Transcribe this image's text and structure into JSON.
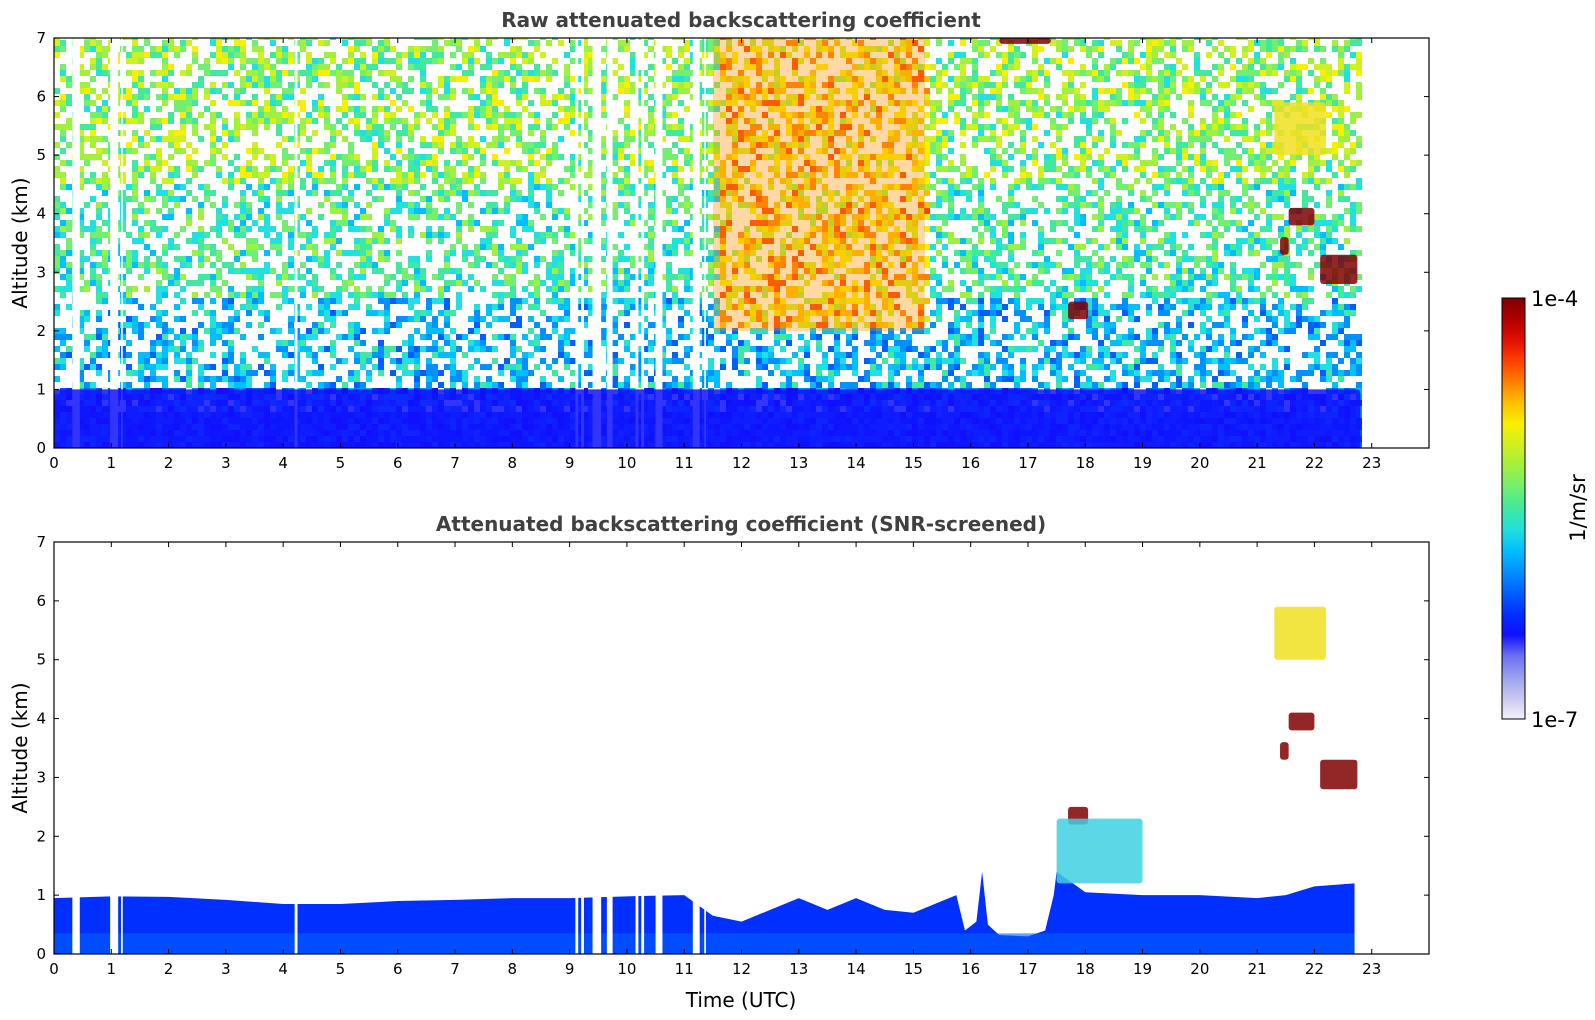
{
  "chart_data": [
    {
      "type": "heatmap",
      "title": "Raw attenuated backscattering coefficient",
      "xlabel": "",
      "ylabel": "Altitude (km)",
      "xlim": [
        0,
        24
      ],
      "ylim": [
        0,
        7
      ],
      "x_ticks": [
        "0",
        "1",
        "2",
        "3",
        "4",
        "5",
        "6",
        "7",
        "8",
        "9",
        "10",
        "11",
        "12",
        "13",
        "14",
        "15",
        "16",
        "17",
        "18",
        "19",
        "20",
        "21",
        "22",
        "23"
      ],
      "y_ticks": [
        "0",
        "1",
        "2",
        "3",
        "4",
        "5",
        "6",
        "7"
      ],
      "data_end_hour": 22.8,
      "data_gaps_hours": [
        [
          0.32,
          0.45
        ],
        [
          0.98,
          1.12
        ],
        [
          1.17,
          1.2
        ],
        [
          4.2,
          4.25
        ],
        [
          9.1,
          9.15
        ],
        [
          9.2,
          9.25
        ],
        [
          9.4,
          9.55
        ],
        [
          9.65,
          9.75
        ],
        [
          10.15,
          10.2
        ],
        [
          10.25,
          10.3
        ],
        [
          10.5,
          10.62
        ],
        [
          11.15,
          11.27
        ],
        [
          11.35,
          11.38
        ]
      ],
      "features": [
        {
          "label": "boundary layer",
          "x_range": [
            0,
            22.8
          ],
          "altitude_km": [
            0,
            1.0
          ],
          "level": "high (blue)"
        },
        {
          "label": "elevated aerosol",
          "x_range": [
            11.5,
            15.2
          ],
          "altitude_km": [
            2,
            7
          ],
          "level": "yellow-red"
        },
        {
          "label": "cloud",
          "x_range": [
            16.5,
            17.4
          ],
          "altitude_km": [
            6.9,
            7.0
          ],
          "level": "1e-4"
        },
        {
          "label": "cloud",
          "x_range": [
            17.7,
            18.05
          ],
          "altitude_km": [
            2.2,
            2.5
          ],
          "level": "1e-4"
        },
        {
          "label": "cloud",
          "x_range": [
            21.4,
            21.55
          ],
          "altitude_km": [
            3.3,
            3.6
          ],
          "level": "1e-4"
        },
        {
          "label": "cloud",
          "x_range": [
            21.55,
            22.0
          ],
          "altitude_km": [
            3.8,
            4.1
          ],
          "level": "1e-4"
        },
        {
          "label": "cloud",
          "x_range": [
            22.1,
            22.75
          ],
          "altitude_km": [
            2.8,
            3.3
          ],
          "level": "1e-4"
        },
        {
          "label": "cirrus",
          "x_range": [
            21.3,
            22.2
          ],
          "altitude_km": [
            5.0,
            5.9
          ],
          "level": "yellow"
        }
      ]
    },
    {
      "type": "heatmap",
      "title": "Attenuated backscattering coefficient (SNR-screened)",
      "xlabel": "Time (UTC)",
      "ylabel": "Altitude (km)",
      "xlim": [
        0,
        24
      ],
      "ylim": [
        0,
        7
      ],
      "x_ticks": [
        "0",
        "1",
        "2",
        "3",
        "4",
        "5",
        "6",
        "7",
        "8",
        "9",
        "10",
        "11",
        "12",
        "13",
        "14",
        "15",
        "16",
        "17",
        "18",
        "19",
        "20",
        "21",
        "22",
        "23"
      ],
      "y_ticks": [
        "0",
        "1",
        "2",
        "3",
        "4",
        "5",
        "6",
        "7"
      ],
      "boundary_layer_top_km": {
        "hours": [
          0,
          1,
          2,
          3,
          4,
          5,
          6,
          7,
          8,
          9,
          10,
          11,
          11.5,
          12,
          12.5,
          13,
          13.5,
          14,
          14.5,
          15,
          15.5,
          15.75,
          15.9,
          16.1,
          16.2,
          16.3,
          16.5,
          17,
          17.3,
          17.45,
          17.5,
          18,
          19,
          20,
          21,
          21.5,
          22,
          22.7
        ],
        "top_km": [
          0.95,
          0.98,
          0.97,
          0.92,
          0.85,
          0.85,
          0.9,
          0.92,
          0.95,
          0.95,
          0.98,
          1.0,
          0.65,
          0.55,
          0.75,
          0.95,
          0.75,
          0.95,
          0.75,
          0.7,
          0.9,
          1.0,
          0.4,
          0.55,
          1.4,
          0.5,
          0.32,
          0.3,
          0.4,
          1.0,
          1.4,
          1.05,
          1.0,
          1.0,
          0.95,
          1.0,
          1.15,
          1.2
        ]
      },
      "features": [
        {
          "label": "cloud",
          "x_range": [
            17.7,
            18.05
          ],
          "altitude_km": [
            2.2,
            2.5
          ],
          "level": "1e-4"
        },
        {
          "label": "aerosol layer",
          "x_range": [
            17.5,
            19.0
          ],
          "altitude_km": [
            1.2,
            2.3
          ],
          "level": "cyan"
        },
        {
          "label": "cloud",
          "x_range": [
            21.4,
            21.55
          ],
          "altitude_km": [
            3.3,
            3.6
          ],
          "level": "1e-4"
        },
        {
          "label": "cloud",
          "x_range": [
            21.55,
            22.0
          ],
          "altitude_km": [
            3.8,
            4.1
          ],
          "level": "1e-4"
        },
        {
          "label": "cloud",
          "x_range": [
            22.1,
            22.75
          ],
          "altitude_km": [
            2.8,
            3.3
          ],
          "level": "1e-4"
        },
        {
          "label": "cirrus",
          "x_range": [
            21.3,
            22.2
          ],
          "altitude_km": [
            5.0,
            5.9
          ],
          "level": "yellow"
        }
      ]
    }
  ],
  "colorbar": {
    "min_label": "1e-7",
    "max_label": "1e-4",
    "unit_label": "1/m/sr",
    "scale": "log",
    "colormap": [
      "#f2f2fb",
      "#c8c8f0",
      "#9aa0f0",
      "#6a70f0",
      "#1010ff",
      "#0030ff",
      "#0060ff",
      "#0090ff",
      "#00bfff",
      "#20e0e0",
      "#40e8a0",
      "#70ef70",
      "#a0f040",
      "#d0f020",
      "#f8f000",
      "#ffc000",
      "#ff8000",
      "#ff4000",
      "#e01000",
      "#b00000",
      "#800000"
    ]
  },
  "colors": {
    "title_text": "#404040",
    "axis_line": "#000000",
    "background": "#ffffff",
    "cloud_core": "#7a0000"
  }
}
